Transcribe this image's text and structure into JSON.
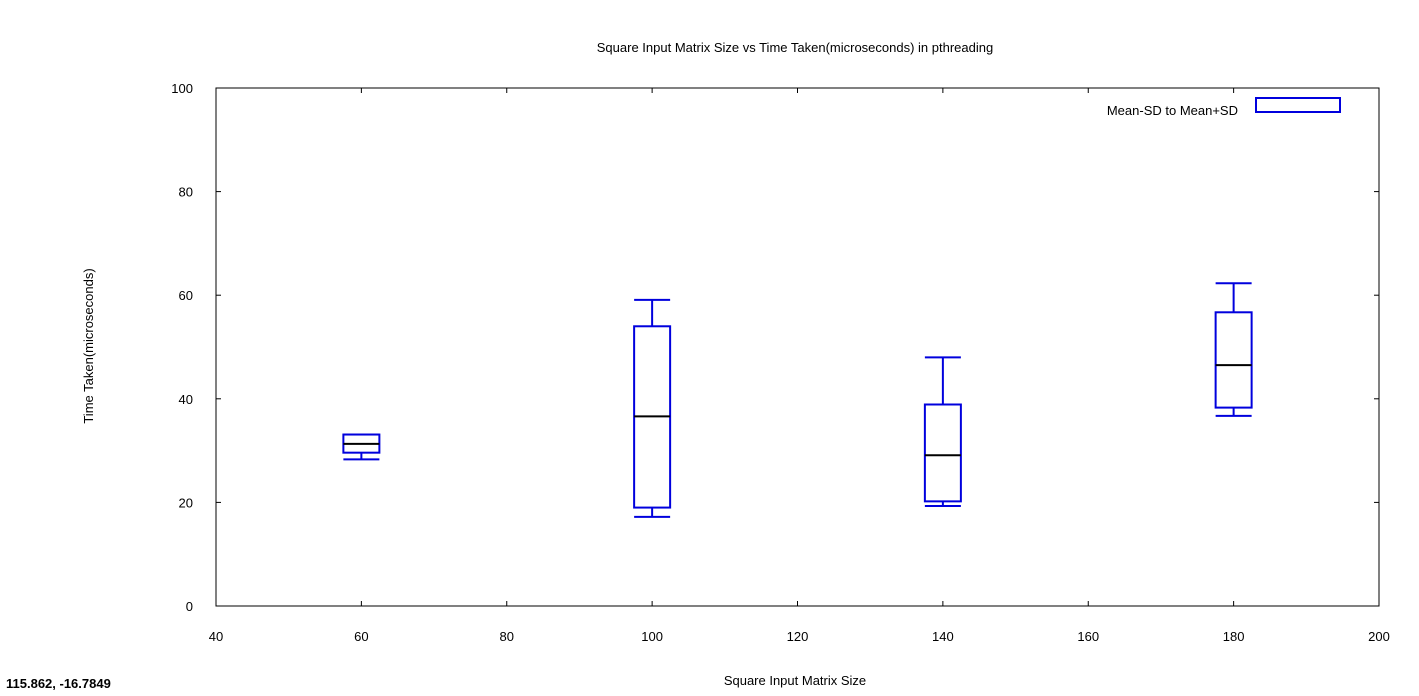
{
  "coordinate_readout": "115.862, -16.7849",
  "chart_data": {
    "type": "box",
    "title": "Square Input Matrix Size vs Time Taken(microseconds) in pthreading",
    "xlabel": "Square Input Matrix Size",
    "ylabel": "Time Taken(microseconds)",
    "xlim": [
      40,
      200
    ],
    "ylim": [
      0,
      100
    ],
    "xticks": [
      40,
      60,
      80,
      100,
      120,
      140,
      160,
      180,
      200
    ],
    "yticks": [
      0,
      20,
      40,
      60,
      80,
      100
    ],
    "grid": false,
    "legend": {
      "label": "Mean-SD to Mean+SD",
      "position": "top-right"
    },
    "series_color": "#0000dd",
    "median_color": "#000000",
    "boxes": [
      {
        "x": 60,
        "whisker_low": 28.3,
        "box_low": 29.6,
        "median": 31.3,
        "box_high": 33.1,
        "whisker_high": 33.1
      },
      {
        "x": 100,
        "whisker_low": 17.2,
        "box_low": 19.0,
        "median": 36.6,
        "box_high": 54.0,
        "whisker_high": 59.1
      },
      {
        "x": 140,
        "whisker_low": 19.3,
        "box_low": 20.2,
        "median": 29.1,
        "box_high": 38.9,
        "whisker_high": 48.0
      },
      {
        "x": 180,
        "whisker_low": 36.7,
        "box_low": 38.3,
        "median": 46.5,
        "box_high": 56.7,
        "whisker_high": 62.3
      }
    ]
  }
}
